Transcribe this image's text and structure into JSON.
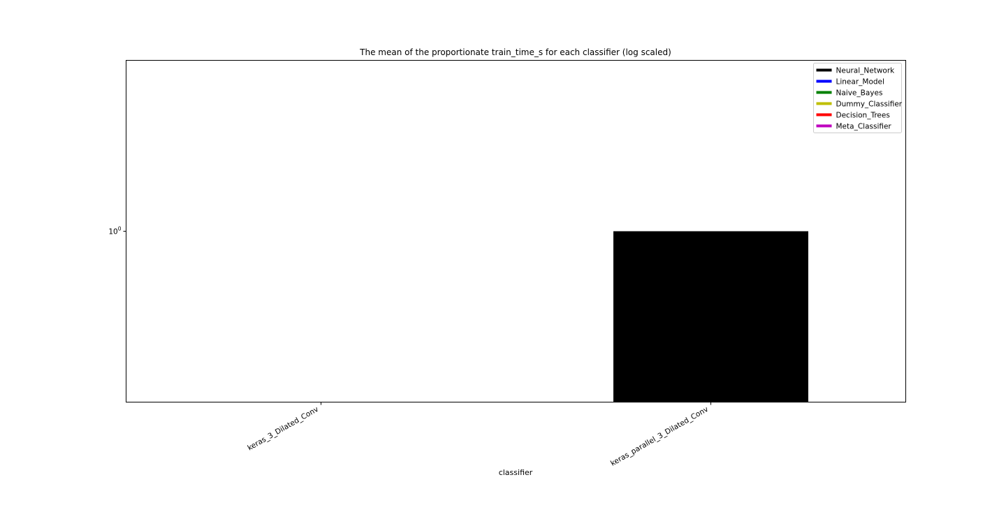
{
  "chart_data": {
    "type": "bar",
    "title": "The mean of  the proportionate train_time_s for each classifier (log scaled)",
    "xlabel": "classifier",
    "ylabel": "",
    "y_scale": "log",
    "y_ticks": [
      {
        "value": 1,
        "base": "10",
        "exponent": "0"
      }
    ],
    "ylim": [
      0.4,
      2.5
    ],
    "categories": [
      "keras_3_Dilated_Conv",
      "keras_parallel_3_Dilated_Conv"
    ],
    "values": [
      null,
      1.0
    ],
    "bar_series": [
      "Neural_Network",
      "Neural_Network"
    ],
    "grid": false,
    "legend_position": "top-right",
    "legend": [
      {
        "name": "Neural_Network",
        "color": "#000000"
      },
      {
        "name": "Linear_Model",
        "color": "#0000ff"
      },
      {
        "name": "Naive_Bayes",
        "color": "#008000"
      },
      {
        "name": "Dummy_Classifier",
        "color": "#bfbf00"
      },
      {
        "name": "Decision_Trees",
        "color": "#ff0000"
      },
      {
        "name": "Meta_Classifier",
        "color": "#bf00bf"
      }
    ]
  }
}
